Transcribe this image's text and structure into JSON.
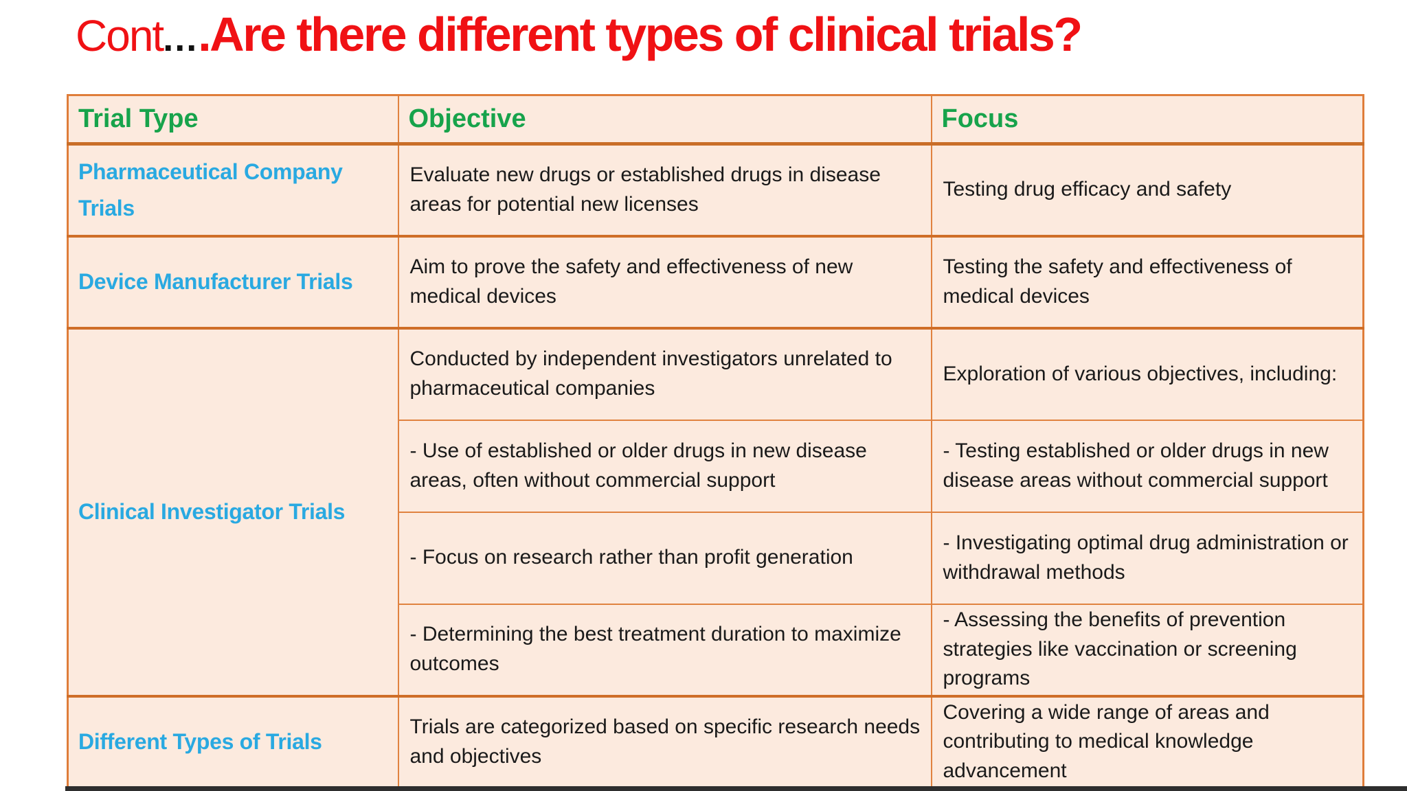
{
  "title": {
    "cont": "Cont",
    "dots": "...",
    "main": ".Are there different types of clinical trials?"
  },
  "table": {
    "headers": [
      "Trial Type",
      "Objective",
      "Focus"
    ],
    "pharma": {
      "type": "Pharmaceutical Company Trials",
      "objective": "Evaluate new drugs or established drugs in disease areas for potential new licenses",
      "focus": "Testing drug efficacy and safety"
    },
    "device": {
      "type": "Device Manufacturer Trials",
      "objective": "Aim to prove the safety and effectiveness of new medical devices",
      "focus": "Testing the safety and effectiveness of medical devices"
    },
    "clinical_investigator": {
      "type": "Clinical Investigator Trials",
      "sub_rows": [
        {
          "objective": "Conducted by independent investigators unrelated to pharmaceutical companies",
          "focus": "Exploration of various objectives, including:"
        },
        {
          "objective": "- Use of established or older drugs in new disease areas, often without commercial support",
          "focus": "- Testing established or older drugs in new disease areas without commercial support"
        },
        {
          "objective": "- Focus on research rather than profit generation",
          "focus": "- Investigating optimal drug administration or withdrawal methods"
        },
        {
          "objective": "- Determining the best treatment duration to maximize outcomes",
          "focus": "- Assessing the benefits of prevention strategies like vaccination or screening programs"
        }
      ]
    },
    "different_types": {
      "type": "Different Types of Trials",
      "objective": "Trials are categorized based on specific research needs and objectives",
      "focus": "Covering a wide range of areas and contributing to medical knowledge advancement"
    }
  },
  "colors": {
    "title_red": "#F01114",
    "title_dots_black": "#111111",
    "header_green": "#17A34B",
    "label_blue": "#29A9E1",
    "border_orange": "#E0823F",
    "border_dark_orange": "#C96E28",
    "cell_background": "#FCEADE"
  }
}
